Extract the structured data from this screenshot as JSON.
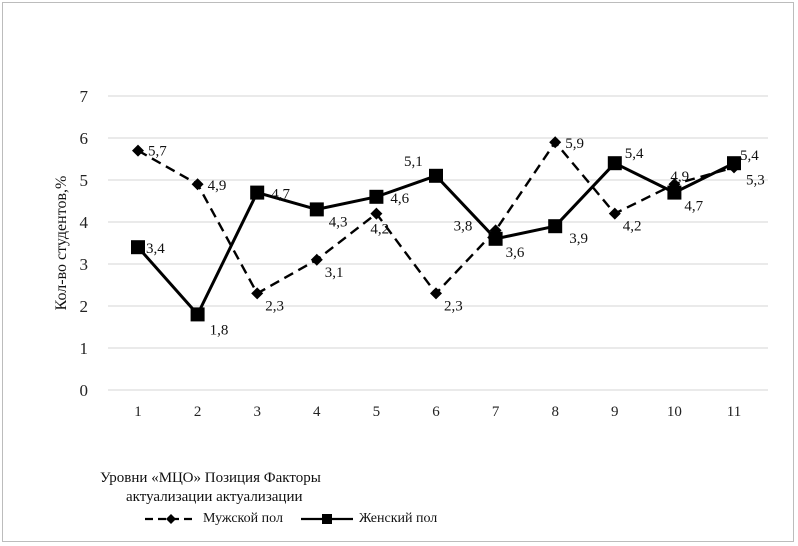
{
  "caption": {
    "line1": "Уровни «МЦО» Позиция Факторы",
    "line2": "актуализации актуализации"
  },
  "chart_data": {
    "type": "line",
    "title": "",
    "xlabel": "",
    "ylabel": "Кол-во студентов,%",
    "ylim": [
      0,
      7
    ],
    "yticks": [
      "0",
      "1",
      "2",
      "3",
      "4",
      "5",
      "6",
      "7"
    ],
    "grid": "horizontal",
    "legend_position": "bottom-left",
    "categories": [
      "1",
      "2",
      "3",
      "4",
      "5",
      "6",
      "7",
      "8",
      "9",
      "10",
      "11"
    ],
    "series": [
      {
        "name": "Мужской пол",
        "style": "dashed",
        "marker": "diamond",
        "color": "#000000",
        "values": [
          5.7,
          4.9,
          2.3,
          3.1,
          4.2,
          2.3,
          3.8,
          5.9,
          4.2,
          4.9,
          5.3
        ],
        "labels": [
          "5,7",
          "4,9",
          "2,3",
          "3,1",
          "4,2",
          "2,3",
          "3,8",
          "5,9",
          "4,2",
          "4,9",
          "5,3"
        ]
      },
      {
        "name": "Женский пол",
        "style": "solid",
        "marker": "square",
        "color": "#000000",
        "values": [
          3.4,
          1.8,
          4.7,
          4.3,
          4.6,
          5.1,
          3.6,
          3.9,
          5.4,
          4.7,
          5.4
        ],
        "labels": [
          "3,4",
          "1,8",
          "4,7",
          "4,3",
          "4,6",
          "5,1",
          "3,6",
          "3,9",
          "5,4",
          "4,7",
          "5,4"
        ]
      }
    ]
  }
}
